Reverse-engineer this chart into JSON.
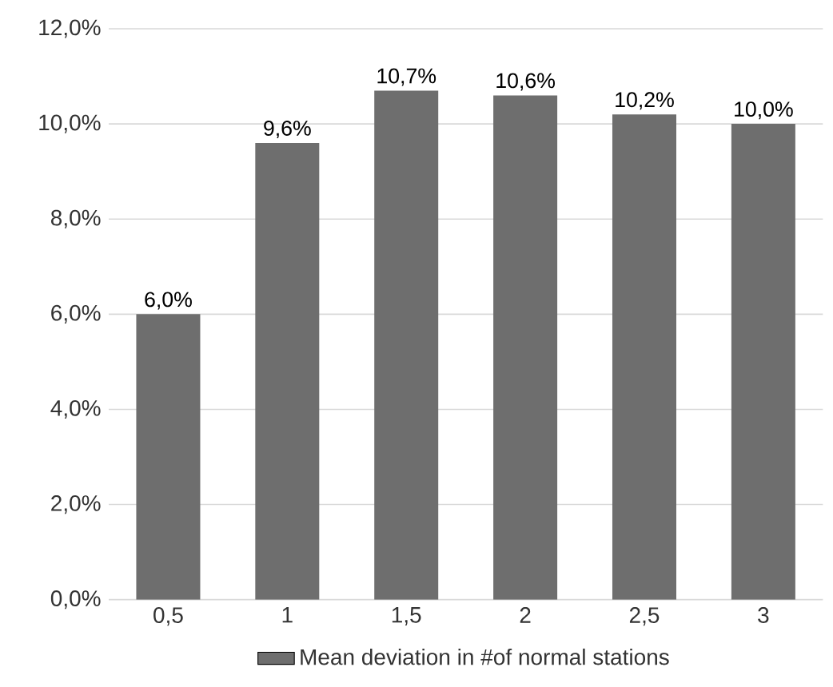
{
  "chart_data": {
    "type": "bar",
    "categories": [
      "0,5",
      "1",
      "1,5",
      "2",
      "2,5",
      "3"
    ],
    "series": [
      {
        "name": "Mean deviation in #of normal stations",
        "color": "#6e6e6e",
        "values": [
          6.0,
          9.6,
          10.7,
          10.6,
          10.2,
          10.0
        ],
        "value_labels": [
          "6,0%",
          "9,6%",
          "10,7%",
          "10,6%",
          "10,2%",
          "10,0%"
        ]
      }
    ],
    "ylim": [
      0,
      12
    ],
    "yticks": [
      {
        "value": 0,
        "label": "0,0%"
      },
      {
        "value": 2,
        "label": "2,0%"
      },
      {
        "value": 4,
        "label": "4,0%"
      },
      {
        "value": 6,
        "label": "6,0%"
      },
      {
        "value": 8,
        "label": "8,0%"
      },
      {
        "value": 10,
        "label": "10,0%"
      },
      {
        "value": 12,
        "label": "12,0%"
      }
    ],
    "grid": "y",
    "legend": "bottom"
  }
}
